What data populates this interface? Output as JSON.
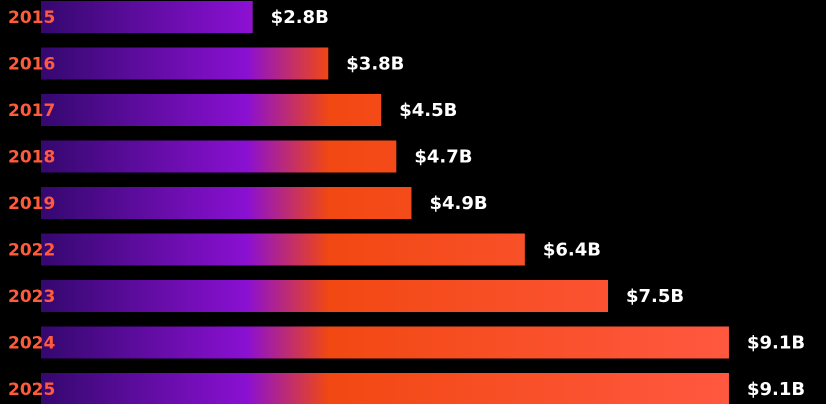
{
  "chart_data": {
    "type": "bar",
    "orientation": "horizontal",
    "categories": [
      "2015",
      "2016",
      "2017",
      "2018",
      "2019",
      "2022",
      "2023",
      "2024",
      "2025"
    ],
    "values": [
      2.8,
      3.8,
      4.5,
      4.7,
      4.9,
      6.4,
      7.5,
      9.1,
      9.1
    ],
    "value_labels": [
      "$2.8B",
      "$3.8B",
      "$4.5B",
      "$4.7B",
      "$4.9B",
      "$6.4B",
      "$7.5B",
      "$9.1B",
      "$9.1B"
    ],
    "xlim": [
      0,
      10
    ],
    "gradient": [
      "#34086e",
      "#8a10d2",
      "#f24812",
      "#ff5840"
    ],
    "label_color": "#ff5a3c",
    "value_label_color": "#ffffff"
  }
}
